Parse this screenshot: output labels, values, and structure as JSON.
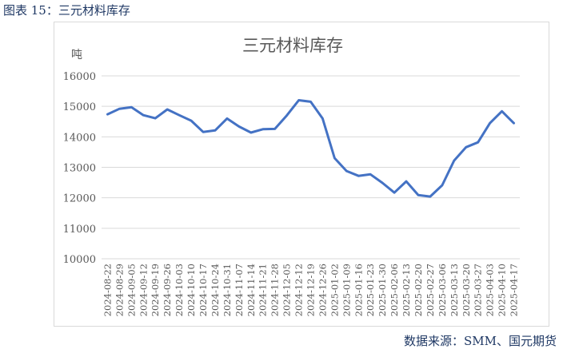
{
  "figure_title": "图表 15：三元材料库存",
  "source": "数据来源：SMM、国元期货",
  "chart_data": {
    "type": "line",
    "title": "三元材料库存",
    "ylabel": "吨",
    "xlabel": "",
    "ylim": [
      10000,
      16000
    ],
    "yticks": [
      10000,
      11000,
      12000,
      13000,
      14000,
      15000,
      16000
    ],
    "grid": true,
    "line_color": "#4472c4",
    "x": [
      "2024-08-22",
      "2024-08-29",
      "2024-09-05",
      "2024-09-12",
      "2024-09-19",
      "2024-09-26",
      "2024-10-03",
      "2024-10-10",
      "2024-10-17",
      "2024-10-24",
      "2024-10-31",
      "2024-11-07",
      "2024-11-14",
      "2024-11-21",
      "2024-11-28",
      "2024-12-05",
      "2024-12-12",
      "2024-12-19",
      "2024-12-26",
      "2025-01-02",
      "2025-01-09",
      "2025-01-16",
      "2025-01-23",
      "2025-01-30",
      "2025-02-06",
      "2025-02-13",
      "2025-02-20",
      "2025-02-27",
      "2025-03-06",
      "2025-03-13",
      "2025-03-20",
      "2025-03-27",
      "2025-04-03",
      "2025-04-10",
      "2025-04-17"
    ],
    "values": [
      14740,
      14920,
      14970,
      14710,
      14610,
      14900,
      14710,
      14530,
      14160,
      14210,
      14600,
      14340,
      14140,
      14250,
      14260,
      14700,
      15200,
      15150,
      14600,
      13300,
      12880,
      12720,
      12770,
      12490,
      12170,
      12540,
      12090,
      12040,
      12410,
      13220,
      13660,
      13820,
      14450,
      14840,
      14450
    ]
  }
}
